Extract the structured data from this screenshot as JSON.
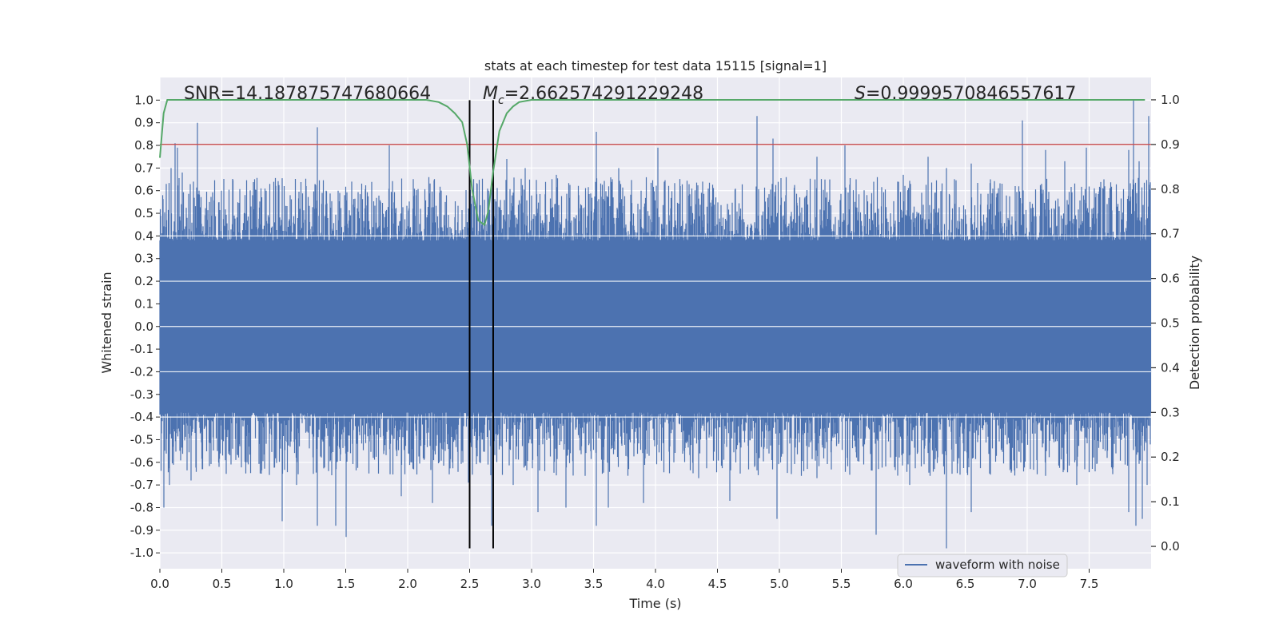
{
  "chart_data": {
    "type": "line",
    "title": "stats at each timestep for test data 15115 [signal=1]",
    "xlabel": "Time (s)",
    "ylabel": "Whitened strain",
    "ylabel_right": "Detection probability",
    "xlim": [
      0.0,
      8.0
    ],
    "ylim": [
      -1.07,
      1.1
    ],
    "ylim_right": [
      -0.05,
      1.05
    ],
    "x_ticks": [
      0.0,
      0.5,
      1.0,
      1.5,
      2.0,
      2.5,
      3.0,
      3.5,
      4.0,
      4.5,
      5.0,
      5.5,
      6.0,
      6.5,
      7.0,
      7.5
    ],
    "x_tick_labels": [
      "0.0",
      "0.5",
      "1.0",
      "1.5",
      "2.0",
      "2.5",
      "3.0",
      "3.5",
      "4.0",
      "4.5",
      "5.0",
      "5.5",
      "6.0",
      "6.5",
      "7.0",
      "7.5"
    ],
    "y_ticks": [
      1.0,
      0.9,
      0.8,
      0.7,
      0.6,
      0.5,
      0.4,
      0.3,
      0.2,
      0.1,
      0.0,
      -0.1,
      -0.2,
      -0.3,
      -0.4,
      -0.5,
      -0.6,
      -0.7,
      -0.8,
      -0.9,
      -1.0
    ],
    "y_tick_labels": [
      "1.0",
      "0.9",
      "0.8",
      "0.7",
      "0.6",
      "0.5",
      "0.4",
      "0.3",
      "0.2",
      "0.1",
      "0.0",
      "-0.1",
      "-0.2",
      "-0.3",
      "-0.4",
      "-0.5",
      "-0.6",
      "-0.7",
      "-0.8",
      "-0.9",
      "-1.0"
    ],
    "y_right_ticks": [
      1.0,
      0.9,
      0.8,
      0.7,
      0.6,
      0.5,
      0.4,
      0.3,
      0.2,
      0.1,
      0.0
    ],
    "y_right_tick_labels": [
      "1.0",
      "0.9",
      "0.8",
      "0.7",
      "0.6",
      "0.5",
      "0.4",
      "0.3",
      "0.2",
      "0.1",
      "0.0"
    ],
    "grid": true,
    "annotations": {
      "snr": "SNR=14.187875747680664",
      "mc_symbol": "M",
      "mc_subscript": "c",
      "mc_value": "=2.662574291229248",
      "s_symbol": "S",
      "s_value": "=0.9999570846557617"
    },
    "threshold": {
      "value": 0.9,
      "axis": "right",
      "color": "#C44E52"
    },
    "vlines": [
      2.5,
      2.69
    ],
    "vline_range": [
      -0.98,
      1.0
    ],
    "series": [
      {
        "name": "waveform with noise",
        "color": "#4C72B0",
        "axis": "left",
        "kind": "noise",
        "band": [
          -0.38,
          0.38
        ],
        "spikes": [
          [
            0.05,
            0.63
          ],
          [
            0.09,
            0.7
          ],
          [
            0.12,
            0.81
          ],
          [
            0.14,
            0.79
          ],
          [
            0.18,
            0.68
          ],
          [
            0.22,
            0.48
          ],
          [
            0.3,
            0.9
          ],
          [
            0.4,
            0.55
          ],
          [
            0.6,
            0.49
          ],
          [
            0.75,
            0.58
          ],
          [
            1.05,
            0.58
          ],
          [
            1.18,
            0.62
          ],
          [
            1.27,
            0.88
          ],
          [
            1.45,
            0.59
          ],
          [
            1.55,
            0.64
          ],
          [
            1.85,
            0.8
          ],
          [
            2.1,
            0.52
          ],
          [
            2.3,
            0.55
          ],
          [
            2.56,
            0.63
          ],
          [
            2.65,
            0.6
          ],
          [
            2.8,
            0.74
          ],
          [
            2.95,
            0.7
          ],
          [
            3.05,
            0.52
          ],
          [
            3.2,
            0.67
          ],
          [
            3.38,
            0.58
          ],
          [
            3.52,
            0.86
          ],
          [
            3.7,
            0.7
          ],
          [
            4.02,
            0.79
          ],
          [
            4.2,
            0.62
          ],
          [
            4.38,
            0.64
          ],
          [
            4.82,
            0.93
          ],
          [
            4.95,
            0.83
          ],
          [
            5.05,
            0.58
          ],
          [
            5.3,
            0.75
          ],
          [
            5.53,
            0.8
          ],
          [
            5.62,
            0.65
          ],
          [
            5.8,
            0.52
          ],
          [
            6.0,
            0.67
          ],
          [
            6.2,
            0.75
          ],
          [
            6.35,
            0.7
          ],
          [
            6.55,
            0.72
          ],
          [
            6.7,
            0.65
          ],
          [
            6.9,
            0.62
          ],
          [
            6.96,
            0.91
          ],
          [
            7.15,
            0.78
          ],
          [
            7.3,
            0.73
          ],
          [
            7.48,
            0.79
          ],
          [
            7.62,
            0.65
          ],
          [
            7.82,
            0.78
          ],
          [
            7.86,
            1.0
          ],
          [
            7.9,
            0.73
          ],
          [
            7.98,
            0.93
          ]
        ],
        "dips": [
          [
            0.03,
            -0.8
          ],
          [
            0.08,
            -0.7
          ],
          [
            0.25,
            -0.68
          ],
          [
            0.48,
            -0.62
          ],
          [
            0.7,
            -0.6
          ],
          [
            0.99,
            -0.86
          ],
          [
            1.1,
            -0.7
          ],
          [
            1.27,
            -0.88
          ],
          [
            1.42,
            -0.88
          ],
          [
            1.5,
            -0.93
          ],
          [
            1.72,
            -0.58
          ],
          [
            1.95,
            -0.75
          ],
          [
            2.2,
            -0.78
          ],
          [
            2.49,
            -0.69
          ],
          [
            2.58,
            -0.6
          ],
          [
            2.68,
            -0.88
          ],
          [
            2.85,
            -0.7
          ],
          [
            3.05,
            -0.82
          ],
          [
            3.28,
            -0.8
          ],
          [
            3.52,
            -0.88
          ],
          [
            3.62,
            -0.8
          ],
          [
            3.9,
            -0.78
          ],
          [
            4.15,
            -0.6
          ],
          [
            4.35,
            -0.67
          ],
          [
            4.6,
            -0.77
          ],
          [
            4.8,
            -0.62
          ],
          [
            4.98,
            -0.85
          ],
          [
            5.3,
            -0.67
          ],
          [
            5.55,
            -0.58
          ],
          [
            5.78,
            -0.92
          ],
          [
            6.05,
            -0.7
          ],
          [
            6.35,
            -0.98
          ],
          [
            6.55,
            -0.82
          ],
          [
            6.75,
            -0.55
          ],
          [
            6.95,
            -0.6
          ],
          [
            7.15,
            -0.66
          ],
          [
            7.4,
            -0.7
          ],
          [
            7.55,
            -0.64
          ],
          [
            7.82,
            -0.82
          ],
          [
            7.88,
            -0.88
          ],
          [
            7.93,
            -0.85
          ],
          [
            7.97,
            -0.7
          ]
        ]
      },
      {
        "name": "detection probability",
        "color": "#55A868",
        "axis": "right",
        "x": [
          0.0,
          0.03,
          0.06,
          0.1,
          0.3,
          1.0,
          2.0,
          2.15,
          2.25,
          2.32,
          2.38,
          2.44,
          2.48,
          2.52,
          2.57,
          2.62,
          2.65,
          2.69,
          2.74,
          2.8,
          2.85,
          2.9,
          3.0,
          4.0,
          5.0,
          6.0,
          7.0,
          7.95
        ],
        "y": [
          0.87,
          0.97,
          1.0,
          1.0,
          1.0,
          1.0,
          1.0,
          1.0,
          0.995,
          0.985,
          0.97,
          0.95,
          0.9,
          0.8,
          0.73,
          0.72,
          0.75,
          0.84,
          0.93,
          0.97,
          0.985,
          0.995,
          1.0,
          1.0,
          1.0,
          1.0,
          1.0,
          1.0
        ]
      }
    ],
    "legend": {
      "location": "lower-right",
      "entries": [
        "waveform with noise"
      ]
    }
  }
}
